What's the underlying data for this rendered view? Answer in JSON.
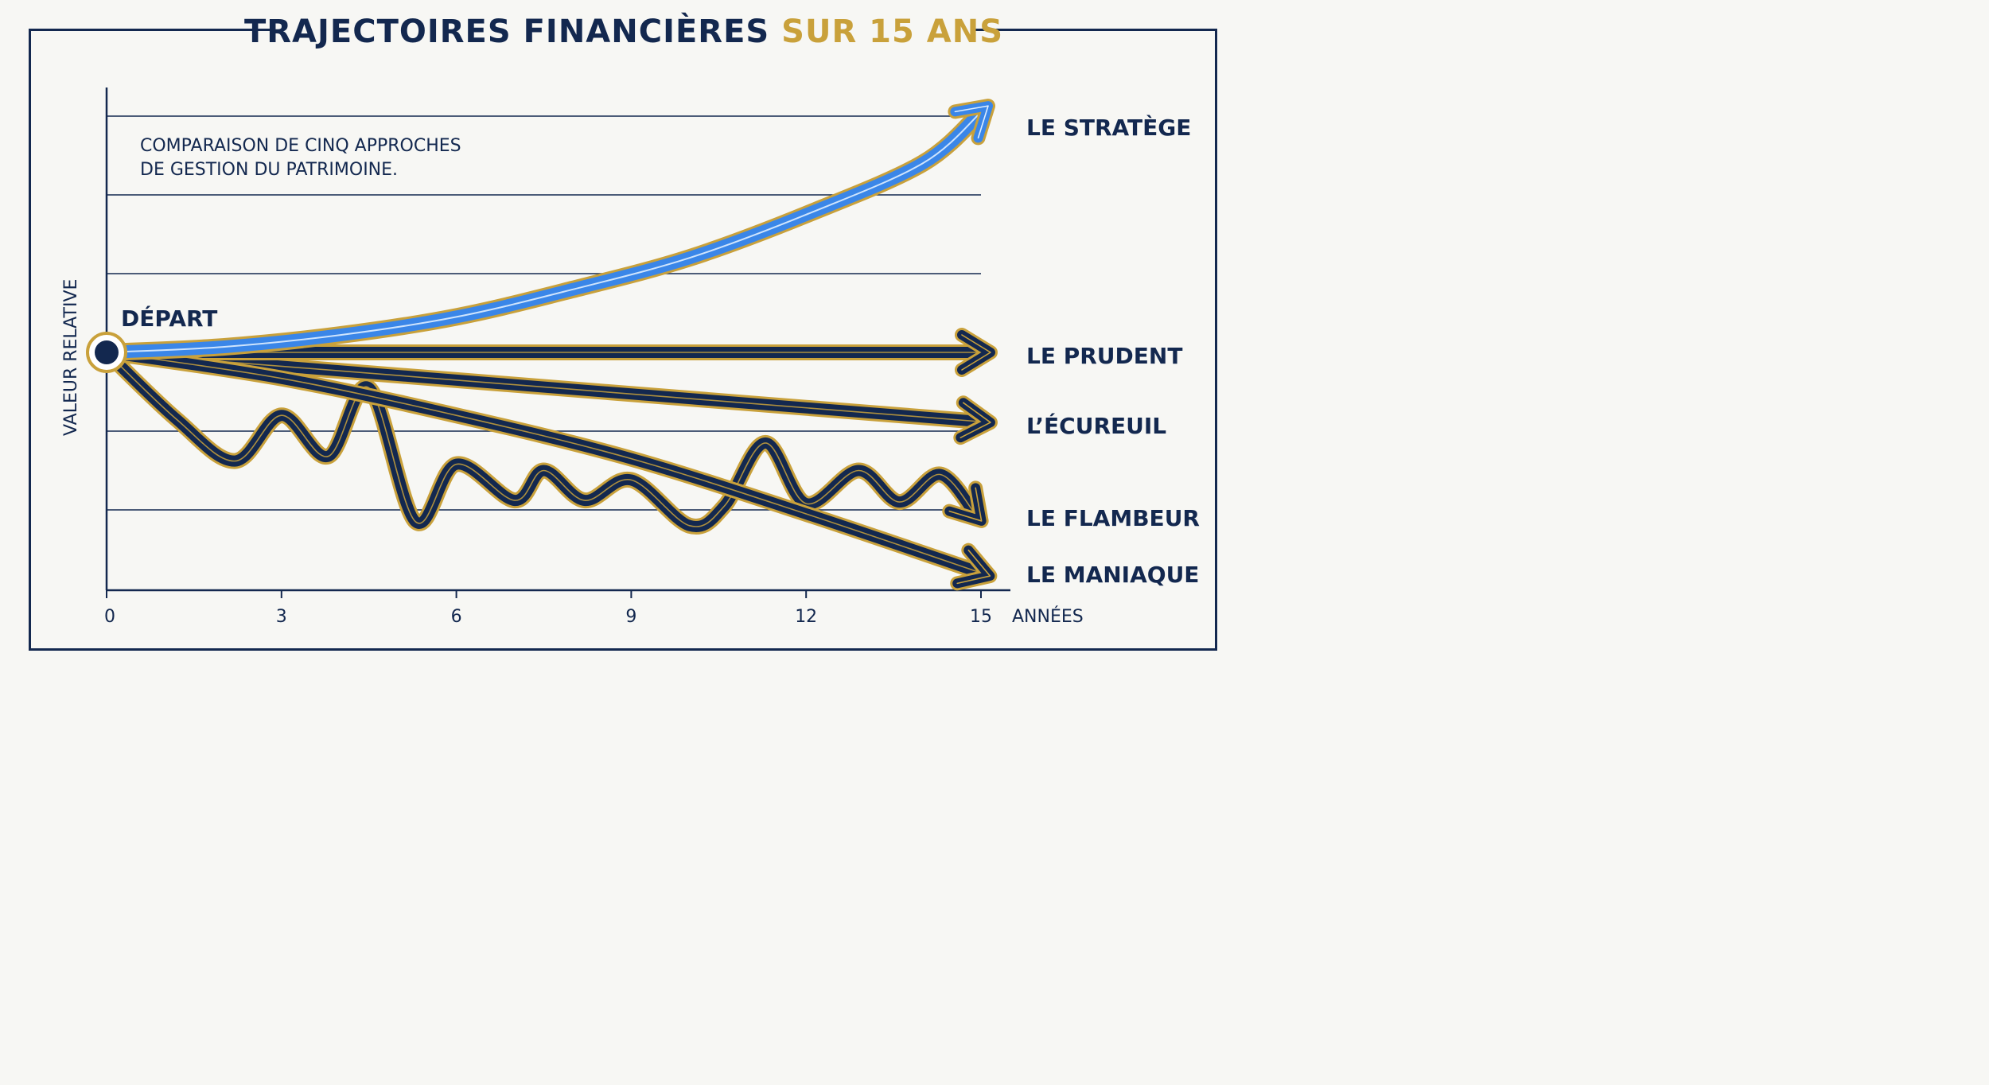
{
  "title": {
    "main": "TRAJECTOIRES FINANCIÈRES",
    "accent": "SUR 15 ANS"
  },
  "colors": {
    "navy": "#13284f",
    "gold": "#c9a13b",
    "blue": "#3a86e8",
    "background": "#f7f7f4"
  },
  "chart_data": {
    "type": "line",
    "title": "TRAJECTOIRES FINANCIÈRES SUR 15 ANS",
    "subtitle_lines": [
      "COMPARAISON DE CINQ APPROCHES",
      "DE GESTION DU PATRIMOINE."
    ],
    "xlabel": "ANNÉES",
    "ylabel": "VALEUR RELATIVE",
    "x_ticks": [
      0,
      3,
      6,
      9,
      12,
      15
    ],
    "xlim": [
      0,
      15
    ],
    "ylim": [
      -3,
      3
    ],
    "y_gridlines": [
      3,
      2,
      1,
      -1,
      -2
    ],
    "grid": true,
    "start_label": "DÉPART",
    "start_point": {
      "x": 0,
      "y": 0
    },
    "series": [
      {
        "name": "LE STRATÈGE",
        "color": "#3a86e8",
        "x": [
          0,
          2,
          4,
          6,
          8,
          10,
          12,
          14,
          15
        ],
        "y": [
          0,
          0.07,
          0.22,
          0.45,
          0.8,
          1.2,
          1.75,
          2.4,
          3.05
        ]
      },
      {
        "name": "LE PRUDENT",
        "color": "#13284f",
        "x": [
          0,
          15
        ],
        "y": [
          0,
          0
        ]
      },
      {
        "name": "L’ÉCUREUIL",
        "color": "#13284f",
        "x": [
          0,
          15
        ],
        "y": [
          0,
          -0.88
        ]
      },
      {
        "name": "LE FLAMBEUR",
        "color": "#13284f",
        "x": [
          0,
          1.2,
          2.2,
          3.0,
          3.8,
          4.5,
          5.3,
          6.0,
          7.0,
          7.5,
          8.2,
          9.0,
          10.0,
          10.6,
          11.3,
          12.0,
          12.9,
          13.6,
          14.3,
          14.9
        ],
        "y": [
          0,
          -0.85,
          -1.38,
          -0.8,
          -1.32,
          -0.45,
          -2.15,
          -1.42,
          -1.88,
          -1.5,
          -1.88,
          -1.62,
          -2.2,
          -1.95,
          -1.15,
          -1.92,
          -1.5,
          -1.9,
          -1.55,
          -2.05
        ]
      },
      {
        "name": "LE MANIAQUE",
        "color": "#13284f",
        "x": [
          0,
          3,
          6,
          9,
          12,
          15
        ],
        "y": [
          0,
          -0.33,
          -0.8,
          -1.35,
          -2.05,
          -2.8
        ]
      }
    ]
  }
}
